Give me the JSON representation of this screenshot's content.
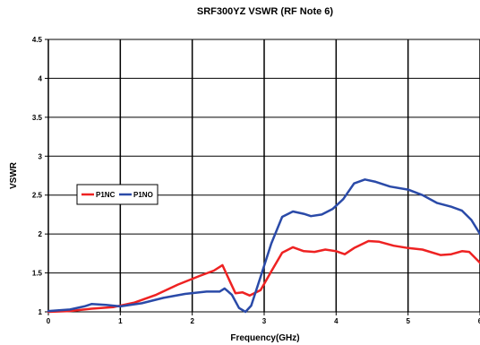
{
  "chart_data": {
    "type": "line",
    "title": "SRF300YZ VSWR (RF Note 6)",
    "xlabel": "Frequency(GHz)",
    "ylabel": "VSWR",
    "xlim": [
      0,
      6
    ],
    "ylim": [
      1,
      4.5
    ],
    "x_ticks": [
      "0",
      "1",
      "2",
      "3",
      "4",
      "5",
      "6"
    ],
    "y_ticks": [
      "1",
      "1.5",
      "2",
      "2.5",
      "3",
      "3.5",
      "4",
      "4.5"
    ],
    "grid": true,
    "legend_position": "left",
    "series": [
      {
        "name": "P1NC",
        "color": "#ee2222",
        "points": [
          [
            0,
            1.0
          ],
          [
            0.3,
            1.01
          ],
          [
            0.6,
            1.04
          ],
          [
            0.9,
            1.06
          ],
          [
            1.2,
            1.12
          ],
          [
            1.5,
            1.22
          ],
          [
            1.8,
            1.35
          ],
          [
            2.1,
            1.46
          ],
          [
            2.3,
            1.53
          ],
          [
            2.42,
            1.6
          ],
          [
            2.52,
            1.4
          ],
          [
            2.6,
            1.24
          ],
          [
            2.7,
            1.25
          ],
          [
            2.8,
            1.21
          ],
          [
            2.95,
            1.28
          ],
          [
            3.1,
            1.52
          ],
          [
            3.25,
            1.76
          ],
          [
            3.4,
            1.83
          ],
          [
            3.55,
            1.78
          ],
          [
            3.7,
            1.77
          ],
          [
            3.85,
            1.8
          ],
          [
            4.0,
            1.78
          ],
          [
            4.12,
            1.74
          ],
          [
            4.25,
            1.82
          ],
          [
            4.45,
            1.91
          ],
          [
            4.6,
            1.9
          ],
          [
            4.8,
            1.85
          ],
          [
            5.0,
            1.82
          ],
          [
            5.2,
            1.8
          ],
          [
            5.45,
            1.73
          ],
          [
            5.6,
            1.74
          ],
          [
            5.75,
            1.78
          ],
          [
            5.85,
            1.77
          ],
          [
            6.0,
            1.63
          ]
        ]
      },
      {
        "name": "P1NO",
        "color": "#2a4aa8",
        "points": [
          [
            0,
            1.01
          ],
          [
            0.3,
            1.03
          ],
          [
            0.5,
            1.07
          ],
          [
            0.6,
            1.1
          ],
          [
            0.8,
            1.09
          ],
          [
            1.0,
            1.07
          ],
          [
            1.3,
            1.11
          ],
          [
            1.6,
            1.18
          ],
          [
            1.9,
            1.23
          ],
          [
            2.2,
            1.26
          ],
          [
            2.38,
            1.26
          ],
          [
            2.45,
            1.3
          ],
          [
            2.55,
            1.22
          ],
          [
            2.65,
            1.05
          ],
          [
            2.74,
            1.0
          ],
          [
            2.82,
            1.08
          ],
          [
            2.95,
            1.45
          ],
          [
            3.1,
            1.88
          ],
          [
            3.25,
            2.22
          ],
          [
            3.4,
            2.29
          ],
          [
            3.55,
            2.26
          ],
          [
            3.65,
            2.23
          ],
          [
            3.8,
            2.25
          ],
          [
            3.95,
            2.32
          ],
          [
            4.1,
            2.45
          ],
          [
            4.25,
            2.65
          ],
          [
            4.4,
            2.7
          ],
          [
            4.55,
            2.67
          ],
          [
            4.75,
            2.61
          ],
          [
            5.0,
            2.57
          ],
          [
            5.2,
            2.5
          ],
          [
            5.4,
            2.4
          ],
          [
            5.6,
            2.35
          ],
          [
            5.75,
            2.3
          ],
          [
            5.88,
            2.18
          ],
          [
            6.0,
            2.0
          ]
        ]
      }
    ]
  }
}
